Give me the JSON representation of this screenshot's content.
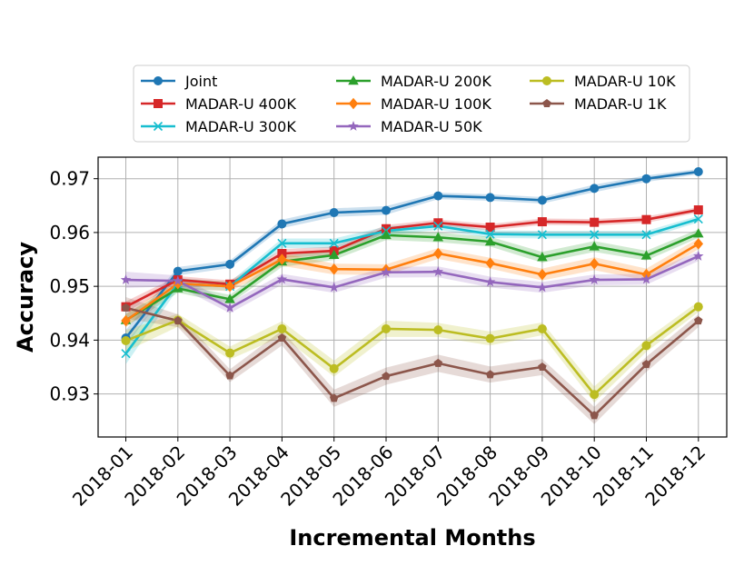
{
  "chart_data": {
    "type": "line",
    "title": "",
    "xlabel": "Incremental Months",
    "ylabel": "Accuracy",
    "categories": [
      "2018-01",
      "2018-02",
      "2018-03",
      "2018-04",
      "2018-05",
      "2018-06",
      "2018-07",
      "2018-08",
      "2018-09",
      "2018-10",
      "2018-11",
      "2018-12"
    ],
    "ylim": [
      0.922,
      0.974
    ],
    "yticks": [
      0.93,
      0.94,
      0.95,
      0.96,
      0.97
    ],
    "ytick_labels": [
      "0.93",
      "0.94",
      "0.95",
      "0.96",
      "0.97"
    ],
    "grid": true,
    "legend_position": "top, above plot",
    "series": [
      {
        "name": "Joint",
        "color": "#1f77b4",
        "marker": "circle",
        "values": [
          0.9404,
          0.9528,
          0.9541,
          0.9616,
          0.9637,
          0.9641,
          0.9668,
          0.9665,
          0.966,
          0.9682,
          0.97,
          0.9713
        ],
        "band": [
          0.0015,
          0.0008,
          0.0007,
          0.0008,
          0.0008,
          0.0008,
          0.0006,
          0.0006,
          0.0006,
          0.0007,
          0.0006,
          0.0005
        ]
      },
      {
        "name": "MADAR-U 400K",
        "color": "#d62728",
        "marker": "square",
        "values": [
          0.9462,
          0.9512,
          0.9504,
          0.9561,
          0.9566,
          0.9607,
          0.9618,
          0.961,
          0.962,
          0.9619,
          0.9624,
          0.9642
        ],
        "band": [
          0.001,
          0.0007,
          0.0007,
          0.0008,
          0.0008,
          0.0007,
          0.0006,
          0.0006,
          0.0006,
          0.0006,
          0.0006,
          0.0005
        ]
      },
      {
        "name": "MADAR-U 300K",
        "color": "#17becf",
        "marker": "x",
        "values": [
          0.9375,
          0.9505,
          0.95,
          0.958,
          0.958,
          0.9603,
          0.9612,
          0.9597,
          0.9596,
          0.9596,
          0.9596,
          0.9625
        ],
        "band": [
          0.002,
          0.001,
          0.0008,
          0.0009,
          0.0009,
          0.0008,
          0.0007,
          0.0007,
          0.0007,
          0.0007,
          0.0007,
          0.0006
        ]
      },
      {
        "name": "MADAR-U 200K",
        "color": "#2ca02c",
        "marker": "triangle",
        "values": [
          0.9437,
          0.9496,
          0.9476,
          0.9546,
          0.9558,
          0.9595,
          0.9591,
          0.9583,
          0.9554,
          0.9574,
          0.9557,
          0.9598
        ],
        "band": [
          0.0012,
          0.0008,
          0.0008,
          0.001,
          0.0009,
          0.0009,
          0.0009,
          0.0009,
          0.001,
          0.001,
          0.0009,
          0.0008
        ]
      },
      {
        "name": "MADAR-U 100K",
        "color": "#ff7f0e",
        "marker": "diamond",
        "values": [
          0.9436,
          0.9505,
          0.95,
          0.955,
          0.9532,
          0.9531,
          0.9561,
          0.9543,
          0.9522,
          0.9542,
          0.9522,
          0.9579
        ],
        "band": [
          0.0012,
          0.0009,
          0.0009,
          0.0012,
          0.001,
          0.001,
          0.001,
          0.001,
          0.0011,
          0.0012,
          0.0011,
          0.001
        ]
      },
      {
        "name": "MADAR-U 50K",
        "color": "#9467bd",
        "marker": "star",
        "values": [
          0.9512,
          0.951,
          0.946,
          0.9513,
          0.9498,
          0.9526,
          0.9527,
          0.9508,
          0.9498,
          0.9512,
          0.9513,
          0.9556
        ],
        "band": [
          0.0015,
          0.001,
          0.001,
          0.001,
          0.001,
          0.001,
          0.001,
          0.001,
          0.001,
          0.001,
          0.001,
          0.0009
        ]
      },
      {
        "name": "MADAR-U 10K",
        "color": "#bcbd22",
        "marker": "circle",
        "values": [
          0.9399,
          0.9437,
          0.9376,
          0.9421,
          0.9347,
          0.9421,
          0.9419,
          0.9403,
          0.9421,
          0.9299,
          0.939,
          0.9462
        ],
        "band": [
          0.002,
          0.0012,
          0.0012,
          0.0014,
          0.0015,
          0.0015,
          0.0013,
          0.0013,
          0.0012,
          0.0015,
          0.0012,
          0.001
        ]
      },
      {
        "name": "MADAR-U 1K",
        "color": "#8c564b",
        "marker": "pentagon",
        "values": [
          0.946,
          0.9436,
          0.9334,
          0.9404,
          0.9292,
          0.9333,
          0.9357,
          0.9336,
          0.935,
          0.926,
          0.9355,
          0.9436
        ],
        "band": [
          0.002,
          0.0012,
          0.0012,
          0.0014,
          0.0016,
          0.0016,
          0.0016,
          0.0015,
          0.0015,
          0.0016,
          0.0014,
          0.0012
        ]
      }
    ]
  }
}
